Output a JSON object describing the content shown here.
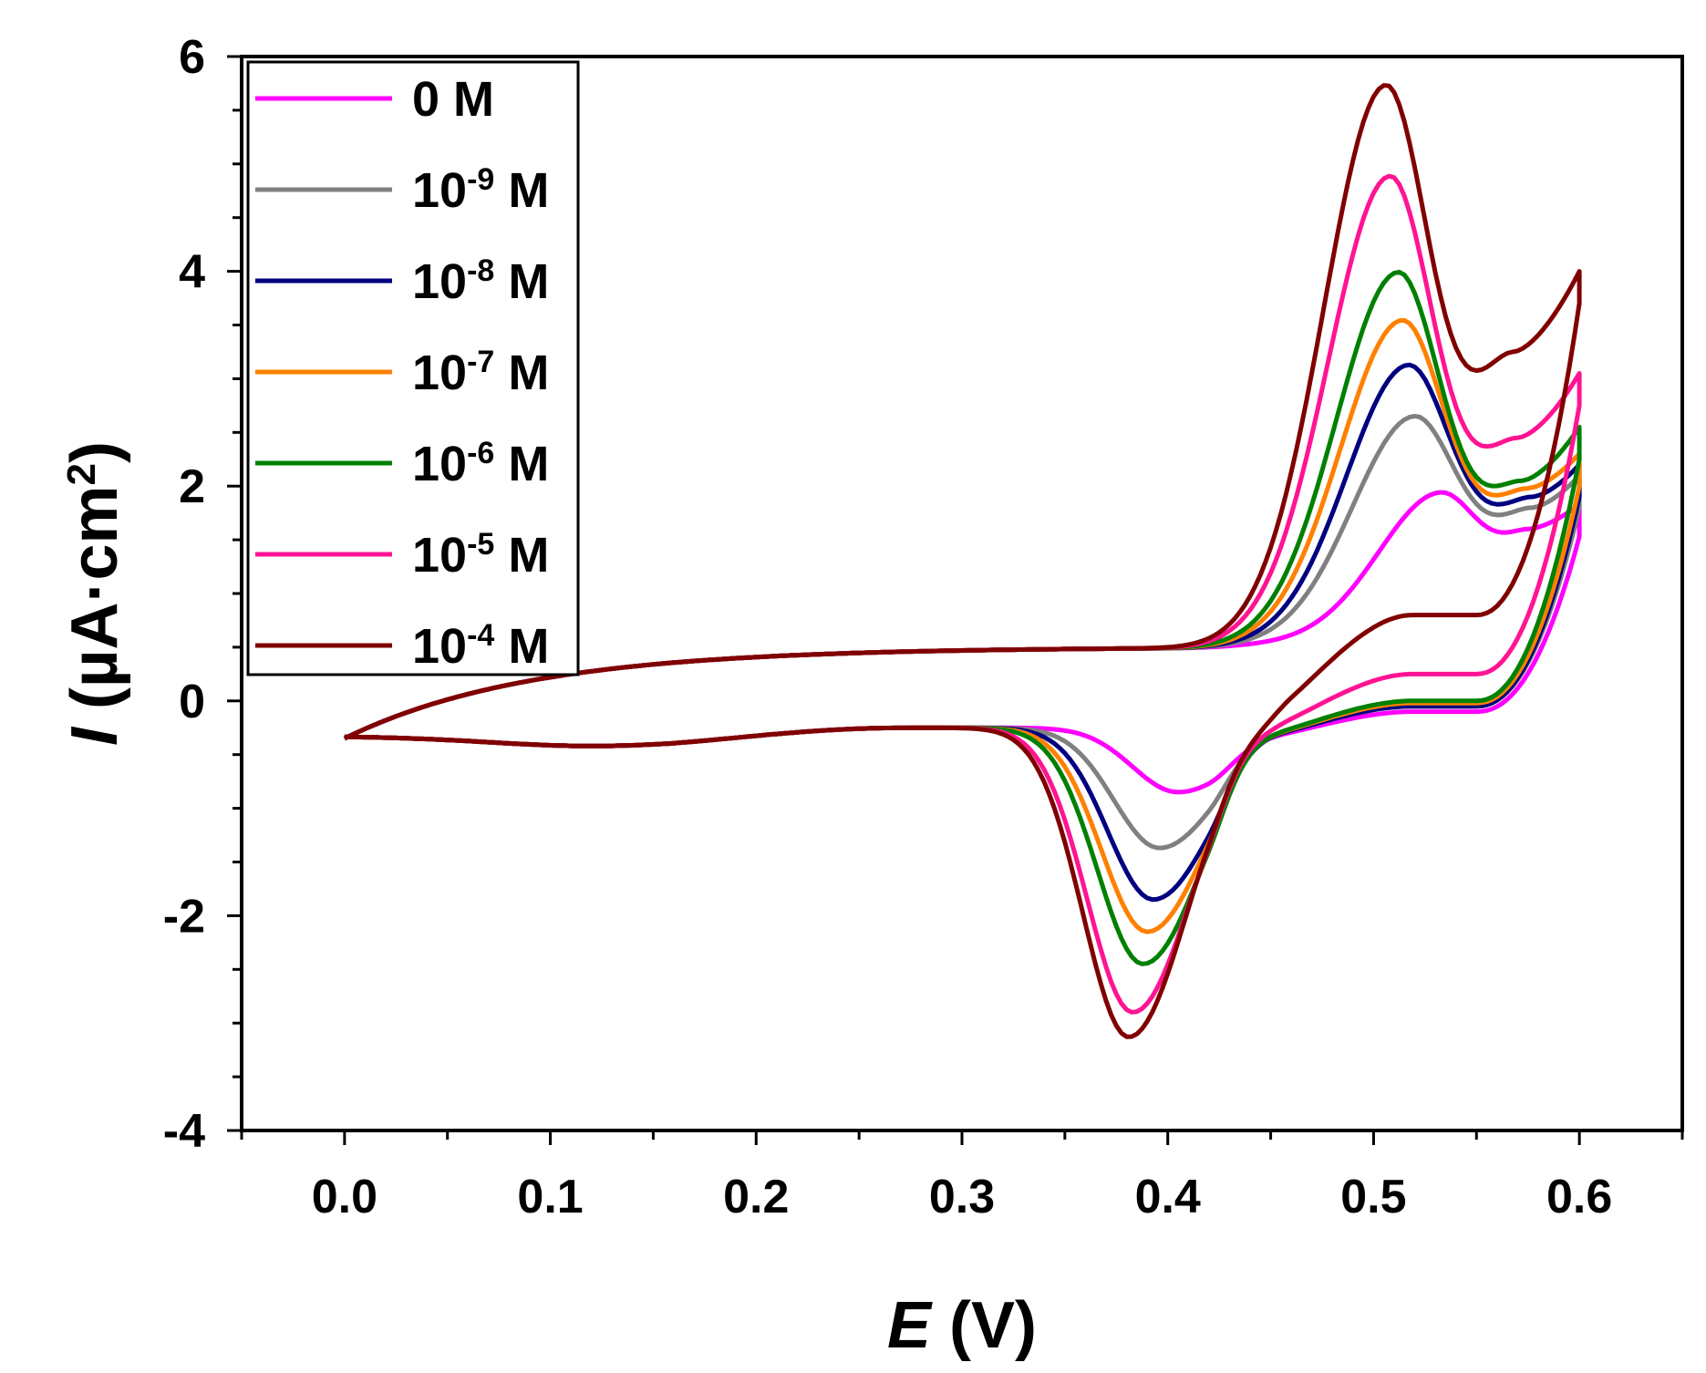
{
  "chart_data": {
    "type": "line",
    "title": "",
    "xlabel": {
      "symbol": "E",
      "unit": " (V)"
    },
    "ylabel": {
      "symbol": "I",
      "unit_main": " (µA·cm",
      "unit_sup": "2",
      "unit_close": ")"
    },
    "xlim": [
      -0.05,
      0.65
    ],
    "ylim": [
      -4,
      6
    ],
    "x_ticks": [
      "0.0",
      "0.1",
      "0.2",
      "0.3",
      "0.4",
      "0.5",
      "0.6"
    ],
    "x_tick_values": [
      0.0,
      0.1,
      0.2,
      0.3,
      0.4,
      0.5,
      0.6
    ],
    "y_ticks": [
      "-4",
      "-2",
      "0",
      "2",
      "4",
      "6"
    ],
    "y_tick_values": [
      -4,
      -2,
      0,
      2,
      4,
      6
    ],
    "grid": false,
    "legend_position": "top-left",
    "series": [
      {
        "name": "0 M",
        "label_base": "0 M",
        "label_sup": "",
        "label_tail": "",
        "color": "#ff00ff",
        "peak_anodic": {
          "E": 0.533,
          "I": 1.83
        },
        "valley_anodic": {
          "E": 0.575,
          "I": 1.6
        },
        "end_I": 1.83,
        "peak_cathodic": {
          "E": 0.405,
          "I": -0.9
        },
        "mid_return_I": -0.1
      },
      {
        "name": "10-9 M",
        "label_base": "10",
        "label_sup": "-9",
        "label_tail": " M",
        "color": "#808080",
        "peak_anodic": {
          "E": 0.52,
          "I": 2.55
        },
        "valley_anodic": {
          "E": 0.577,
          "I": 1.8
        },
        "end_I": 2.1,
        "peak_cathodic": {
          "E": 0.396,
          "I": -1.42
        },
        "mid_return_I": -0.05
      },
      {
        "name": "10-8 M",
        "label_base": "10",
        "label_sup": "-8",
        "label_tail": " M",
        "color": "#000080",
        "peak_anodic": {
          "E": 0.517,
          "I": 3.03
        },
        "valley_anodic": {
          "E": 0.577,
          "I": 1.9
        },
        "end_I": 2.2,
        "peak_cathodic": {
          "E": 0.393,
          "I": -1.9
        },
        "mid_return_I": -0.05
      },
      {
        "name": "10-7 M",
        "label_base": "10",
        "label_sup": "-7",
        "label_tail": " M",
        "color": "#ff8000",
        "peak_anodic": {
          "E": 0.514,
          "I": 3.45
        },
        "valley_anodic": {
          "E": 0.575,
          "I": 1.98
        },
        "end_I": 2.3,
        "peak_cathodic": {
          "E": 0.39,
          "I": -2.2
        },
        "mid_return_I": -0.02
      },
      {
        "name": "10-6 M",
        "label_base": "10",
        "label_sup": "-6",
        "label_tail": " M",
        "color": "#008000",
        "peak_anodic": {
          "E": 0.512,
          "I": 3.9
        },
        "valley_anodic": {
          "E": 0.572,
          "I": 2.05
        },
        "end_I": 2.55,
        "peak_cathodic": {
          "E": 0.388,
          "I": -2.5
        },
        "mid_return_I": 0.0
      },
      {
        "name": "10-5 M",
        "label_base": "10",
        "label_sup": "-5",
        "label_tail": " M",
        "color": "#ff1493",
        "peak_anodic": {
          "E": 0.508,
          "I": 4.8
        },
        "valley_anodic": {
          "E": 0.57,
          "I": 2.45
        },
        "end_I": 3.05,
        "peak_cathodic": {
          "E": 0.383,
          "I": -2.95
        },
        "mid_return_I": 0.25
      },
      {
        "name": "10-4 M",
        "label_base": "10",
        "label_sup": "-4",
        "label_tail": " M",
        "color": "#800000",
        "peak_anodic": {
          "E": 0.506,
          "I": 5.65
        },
        "valley_anodic": {
          "E": 0.568,
          "I": 3.25
        },
        "end_I": 4.0,
        "peak_cathodic": {
          "E": 0.381,
          "I": -3.18
        },
        "mid_return_I": 0.8
      }
    ]
  }
}
